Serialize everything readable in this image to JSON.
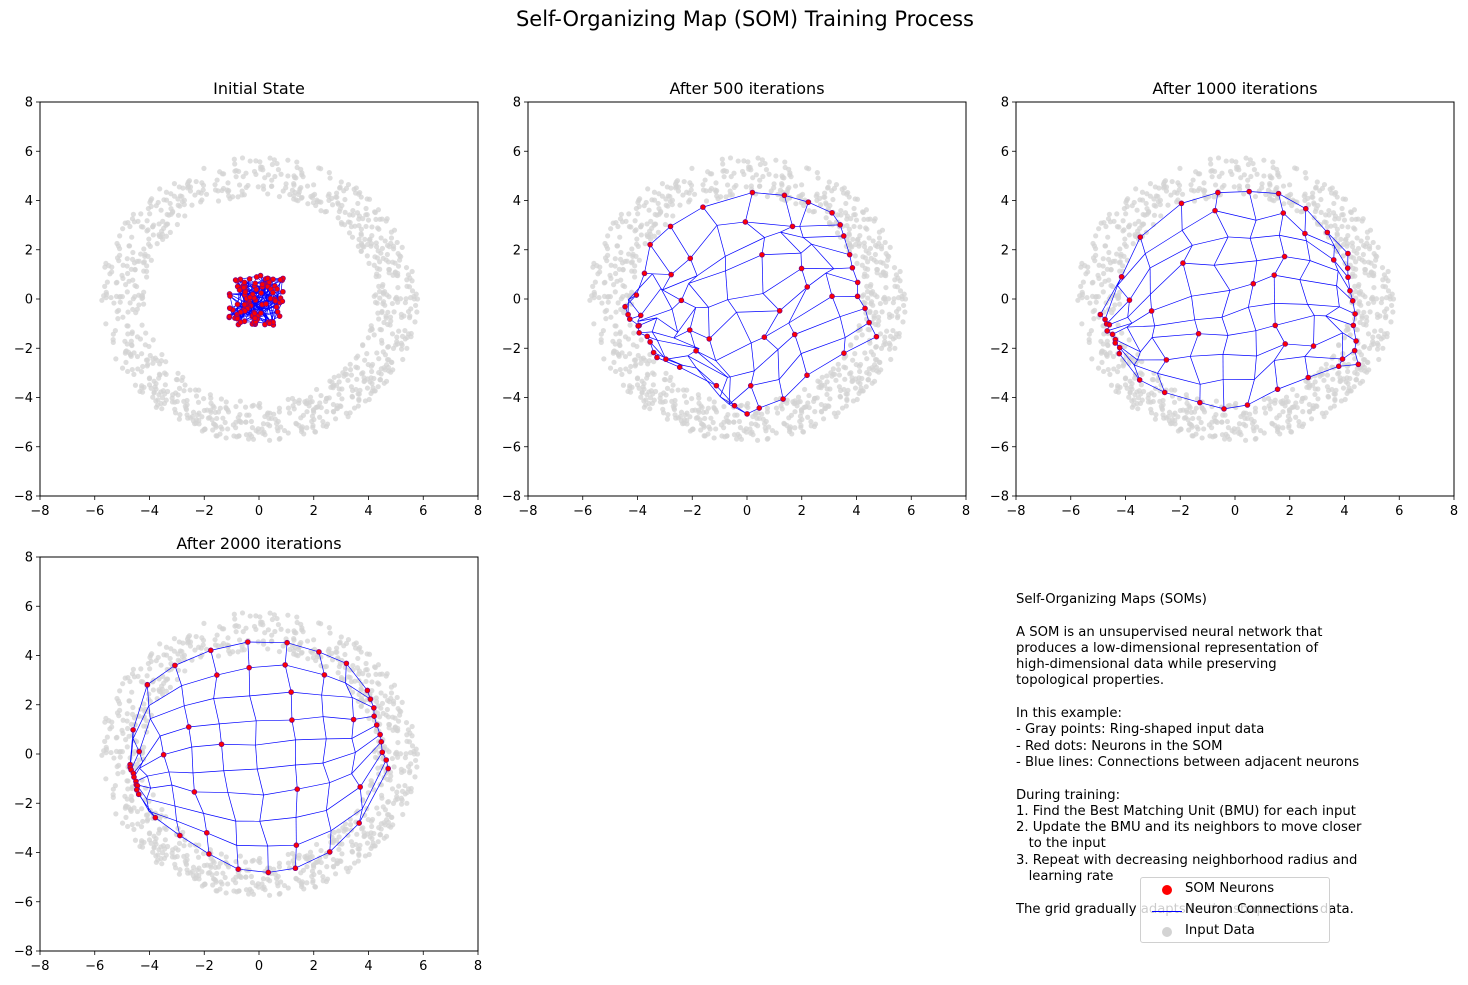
{
  "chart_data": {
    "type": "scatter",
    "title": "Self-Organizing Map (SOM) Training Process",
    "colors": {
      "neurons": "#ff0000",
      "neuron_edge": "#800080",
      "connections": "#0000ff",
      "input": "#d3d3d3"
    },
    "input_data": {
      "shape": "ring",
      "center": [
        0,
        0
      ],
      "inner_radius": 4.5,
      "outer_radius": 5.5,
      "count": 1000
    },
    "grid_size": [
      10,
      10
    ],
    "panels": [
      {
        "title": "Initial State",
        "xlim": [
          -8,
          8
        ],
        "ylim": [
          -8,
          8
        ],
        "xticks": [
          "−8",
          "−6",
          "−4",
          "−2",
          "0",
          "2",
          "4",
          "6",
          "8"
        ],
        "yticks": [
          "−8",
          "−6",
          "−4",
          "−2",
          "0",
          "2",
          "4",
          "6",
          "8"
        ],
        "state": "random_square",
        "extent": [
          -1.1,
          0.9,
          -1.1,
          1.0
        ]
      },
      {
        "title": "After 500 iterations",
        "xlim": [
          -8,
          8
        ],
        "ylim": [
          -8,
          8
        ],
        "xticks": [
          "−8",
          "−6",
          "−4",
          "−2",
          "0",
          "2",
          "4",
          "6",
          "8"
        ],
        "yticks": [
          "−8",
          "−6",
          "−4",
          "−2",
          "0",
          "2",
          "4",
          "6",
          "8"
        ],
        "state": "folded_grid",
        "top_edge": [
          [
            -4.4,
            -0.3
          ],
          [
            -4.2,
            0.1
          ],
          [
            -3.8,
            0.9
          ],
          [
            -3.7,
            2.0
          ],
          [
            -3.2,
            2.4
          ],
          [
            -2.2,
            3.4
          ],
          [
            -1.1,
            4.2
          ],
          [
            0.8,
            4.2
          ],
          [
            1.4,
            4.1
          ],
          [
            2.3,
            4.0
          ],
          [
            3.2,
            3.6
          ]
        ],
        "bottom_edge": [
          [
            -3.4,
            -2.3
          ],
          [
            -2.5,
            -2.8
          ],
          [
            -1.3,
            -3.4
          ],
          [
            -0.6,
            -4.1
          ],
          [
            -0.2,
            -4.8
          ],
          [
            0.3,
            -4.5
          ],
          [
            0.8,
            -4.4
          ],
          [
            1.5,
            -3.8
          ],
          [
            2.5,
            -3.0
          ],
          [
            3.6,
            -2.0
          ],
          [
            4.6,
            -1.5
          ]
        ]
      },
      {
        "title": "After 1000 iterations",
        "xlim": [
          -8,
          8
        ],
        "ylim": [
          -8,
          8
        ],
        "xticks": [
          "−8",
          "−6",
          "−4",
          "−2",
          "0",
          "2",
          "4",
          "6",
          "8"
        ],
        "yticks": [
          "−8",
          "−6",
          "−4",
          "−2",
          "0",
          "2",
          "4",
          "6",
          "8"
        ],
        "state": "unfolding_grid",
        "top_edge": [
          [
            -4.9,
            -0.6
          ],
          [
            -4.3,
            0.8
          ],
          [
            -3.7,
            2.2
          ],
          [
            -2.3,
            3.6
          ],
          [
            -1.0,
            4.3
          ],
          [
            0.0,
            4.4
          ],
          [
            1.0,
            4.3
          ],
          [
            2.0,
            4.2
          ],
          [
            2.8,
            3.4
          ],
          [
            3.5,
            2.6
          ],
          [
            4.1,
            1.8
          ]
        ],
        "bottom_edge": [
          [
            -4.2,
            -2.2
          ],
          [
            -3.6,
            -3.3
          ],
          [
            -2.8,
            -3.7
          ],
          [
            -1.6,
            -4.0
          ],
          [
            -0.7,
            -4.4
          ],
          [
            0.1,
            -4.6
          ],
          [
            0.9,
            -4.0
          ],
          [
            1.9,
            -3.4
          ],
          [
            2.9,
            -3.1
          ],
          [
            3.8,
            -2.7
          ],
          [
            4.5,
            -2.6
          ]
        ]
      },
      {
        "title": "After 2000 iterations",
        "xlim": [
          -8,
          8
        ],
        "ylim": [
          -8,
          8
        ],
        "xticks": [
          "−8",
          "−6",
          "−4",
          "−2",
          "0",
          "2",
          "4",
          "6",
          "8"
        ],
        "yticks": [
          "−8",
          "−6",
          "−4",
          "−2",
          "0",
          "2",
          "4",
          "6",
          "8"
        ],
        "state": "ring_grid",
        "top_edge": [
          [
            -4.7,
            -0.4
          ],
          [
            -4.6,
            0.8
          ],
          [
            -4.3,
            2.6
          ],
          [
            -3.4,
            3.4
          ],
          [
            -2.3,
            4.0
          ],
          [
            -1.1,
            4.4
          ],
          [
            0.2,
            4.7
          ],
          [
            1.5,
            4.4
          ],
          [
            2.4,
            4.1
          ],
          [
            3.3,
            3.6
          ],
          [
            4.0,
            2.6
          ]
        ],
        "bottom_edge": [
          [
            -4.4,
            -1.6
          ],
          [
            -3.9,
            -2.5
          ],
          [
            -3.1,
            -3.2
          ],
          [
            -2.2,
            -3.9
          ],
          [
            -1.2,
            -4.5
          ],
          [
            -0.2,
            -4.8
          ],
          [
            0.7,
            -4.8
          ],
          [
            1.7,
            -4.5
          ],
          [
            2.8,
            -3.8
          ],
          [
            3.8,
            -2.7
          ],
          [
            4.7,
            -0.6
          ]
        ]
      }
    ],
    "legend": [
      {
        "label": "SOM Neurons",
        "kind": "dot",
        "color": "#ff0000"
      },
      {
        "label": "Neuron Connections",
        "kind": "line",
        "color": "#0000ff"
      },
      {
        "label": "Input Data",
        "kind": "dot",
        "color": "#d3d3d3"
      }
    ]
  },
  "info_text": "Self-Organizing Maps (SOMs)\n\nA SOM is an unsupervised neural network that\nproduces a low-dimensional representation of\nhigh-dimensional data while preserving\ntopological properties.\n\nIn this example:\n- Gray points: Ring-shaped input data\n- Red dots: Neurons in the SOM\n- Blue lines: Connections between adjacent neurons\n\nDuring training:\n1. Find the Best Matching Unit (BMU) for each input\n2. Update the BMU and its neighbors to move closer\n   to the input\n3. Repeat with decreasing neighborhood radius and\n   learning rate\n\nThe grid gradually adapts to the shape of the data."
}
